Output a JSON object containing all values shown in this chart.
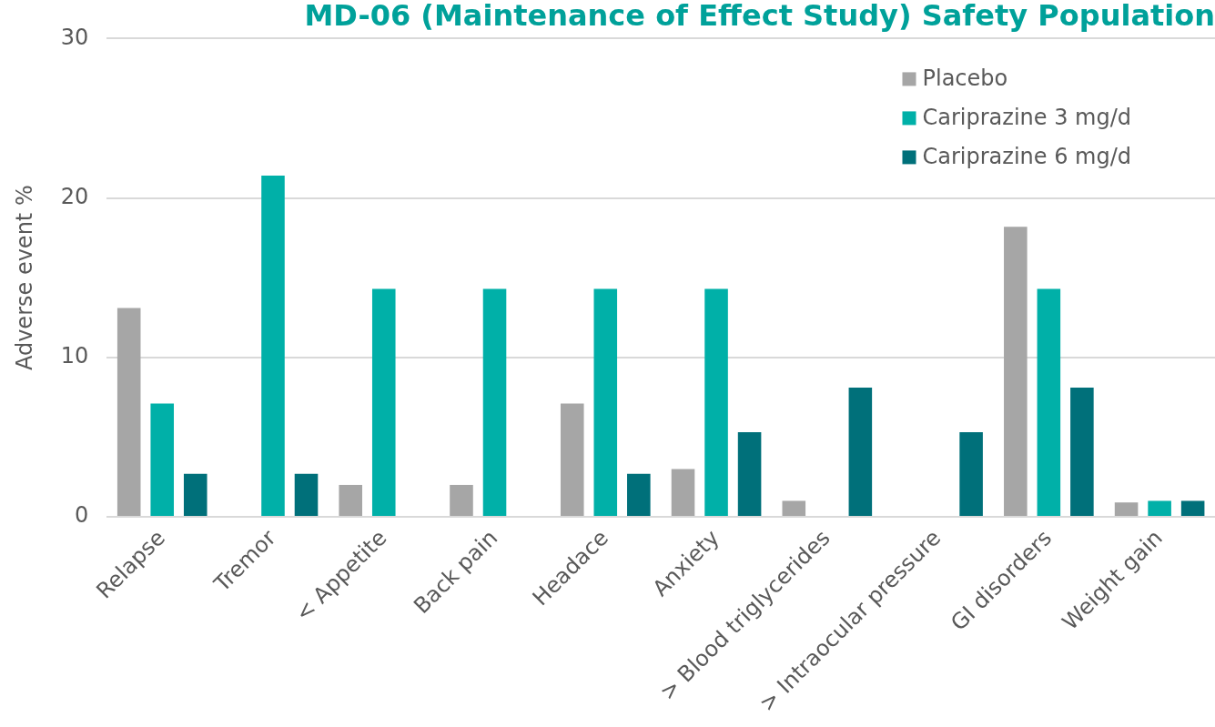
{
  "chart_data": {
    "type": "bar",
    "title": "MD-06 (Maintenance of Effect Study) Safety Population",
    "ylabel": "Adverse event %",
    "categories": [
      "Relapse",
      "Tremor",
      "< Appetite",
      "Back pain",
      "Headace",
      "Anxiety",
      "> Blood triglycerides",
      "> Intraocular pressure",
      "GI disorders",
      "Weight gain"
    ],
    "series": [
      {
        "name": "Placebo",
        "color": "#a6a6a6",
        "values": [
          13.1,
          0,
          2.0,
          2.0,
          7.1,
          3.0,
          1.0,
          0,
          18.2,
          0.9
        ]
      },
      {
        "name": "Cariprazine 3 mg/d",
        "color": "#00b0a8",
        "values": [
          7.1,
          21.4,
          14.3,
          14.3,
          14.3,
          14.3,
          0,
          0,
          14.3,
          1.0
        ]
      },
      {
        "name": "Cariprazine 6 mg/d",
        "color": "#00707a",
        "values": [
          2.7,
          2.7,
          0,
          0,
          2.7,
          5.3,
          8.1,
          5.3,
          8.1,
          1.0
        ]
      }
    ],
    "ylim": [
      0,
      30
    ],
    "yticks": [
      0,
      10,
      20,
      30
    ],
    "grid": "y",
    "legend": "top right"
  }
}
